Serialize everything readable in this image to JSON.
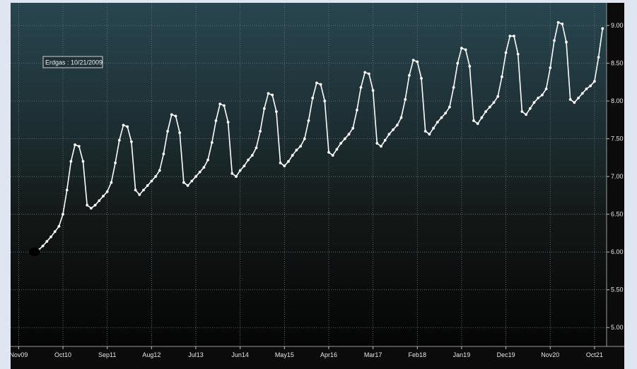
{
  "chart_data": {
    "type": "line",
    "legend": "Erdgas : 10/21/2009",
    "grid": true,
    "ylim": [
      4.75,
      9.3
    ],
    "xlim": [
      "2009-09",
      "2022-01"
    ],
    "x_tick_labels": [
      "Nov09",
      "Oct10",
      "Sep11",
      "Aug12",
      "Jul13",
      "Jun14",
      "May15",
      "Apr16",
      "Mar17",
      "Feb18",
      "Jan19",
      "Dec19",
      "Nov20",
      "Oct21"
    ],
    "x_tick_dates": [
      "2009-11",
      "2010-10",
      "2011-09",
      "2012-08",
      "2013-07",
      "2014-06",
      "2015-05",
      "2016-04",
      "2017-03",
      "2018-02",
      "2019-01",
      "2019-12",
      "2020-11",
      "2021-10"
    ],
    "y_tick_labels": [
      "5.00",
      "5.50",
      "6.00",
      "6.50",
      "7.00",
      "7.50",
      "8.00",
      "8.50",
      "9.00"
    ],
    "y_ticks": [
      5.0,
      5.5,
      6.0,
      6.5,
      7.0,
      7.5,
      8.0,
      8.5,
      9.0
    ],
    "series": [
      {
        "name": "Erdgas",
        "color": "#ffffff",
        "x": [
          "2010-04",
          "2010-05",
          "2010-06",
          "2010-07",
          "2010-08",
          "2010-09",
          "2010-10",
          "2010-11",
          "2010-12",
          "2011-01",
          "2011-02",
          "2011-03",
          "2011-04",
          "2011-05",
          "2011-06",
          "2011-07",
          "2011-08",
          "2011-09",
          "2011-10",
          "2011-11",
          "2011-12",
          "2012-01",
          "2012-02",
          "2012-03",
          "2012-04",
          "2012-05",
          "2012-06",
          "2012-07",
          "2012-08",
          "2012-09",
          "2012-10",
          "2012-11",
          "2012-12",
          "2013-01",
          "2013-02",
          "2013-03",
          "2013-04",
          "2013-05",
          "2013-06",
          "2013-07",
          "2013-08",
          "2013-09",
          "2013-10",
          "2013-11",
          "2013-12",
          "2014-01",
          "2014-02",
          "2014-03",
          "2014-04",
          "2014-05",
          "2014-06",
          "2014-07",
          "2014-08",
          "2014-09",
          "2014-10",
          "2014-11",
          "2014-12",
          "2015-01",
          "2015-02",
          "2015-03",
          "2015-04",
          "2015-05",
          "2015-06",
          "2015-07",
          "2015-08",
          "2015-09",
          "2015-10",
          "2015-11",
          "2015-12",
          "2016-01",
          "2016-02",
          "2016-03",
          "2016-04",
          "2016-05",
          "2016-06",
          "2016-07",
          "2016-08",
          "2016-09",
          "2016-10",
          "2016-11",
          "2016-12",
          "2017-01",
          "2017-02",
          "2017-03",
          "2017-04",
          "2017-05",
          "2017-06",
          "2017-07",
          "2017-08",
          "2017-09",
          "2017-10",
          "2017-11",
          "2017-12",
          "2018-01",
          "2018-02",
          "2018-03",
          "2018-04",
          "2018-05",
          "2018-06",
          "2018-07",
          "2018-08",
          "2018-09",
          "2018-10",
          "2018-11",
          "2018-12",
          "2019-01",
          "2019-02",
          "2019-03",
          "2019-04",
          "2019-05",
          "2019-06",
          "2019-07",
          "2019-08",
          "2019-09",
          "2019-10",
          "2019-11",
          "2019-12",
          "2020-01",
          "2020-02",
          "2020-03",
          "2020-04",
          "2020-05",
          "2020-06",
          "2020-07",
          "2020-08",
          "2020-09",
          "2020-10",
          "2020-11",
          "2020-12",
          "2021-01",
          "2021-02",
          "2021-03",
          "2021-04",
          "2021-05",
          "2021-06",
          "2021-07",
          "2021-08",
          "2021-09",
          "2021-10",
          "2021-11",
          "2021-12"
        ],
        "values": [
          6.03,
          6.08,
          6.14,
          6.2,
          6.27,
          6.34,
          6.5,
          6.82,
          7.2,
          7.42,
          7.4,
          7.2,
          6.62,
          6.58,
          6.62,
          6.68,
          6.74,
          6.8,
          6.92,
          7.18,
          7.48,
          7.68,
          7.66,
          7.46,
          6.82,
          6.76,
          6.82,
          6.88,
          6.94,
          7.0,
          7.08,
          7.3,
          7.6,
          7.82,
          7.8,
          7.58,
          6.92,
          6.88,
          6.94,
          7.0,
          7.06,
          7.12,
          7.22,
          7.45,
          7.74,
          7.96,
          7.94,
          7.72,
          7.04,
          7.0,
          7.08,
          7.14,
          7.22,
          7.28,
          7.38,
          7.6,
          7.9,
          8.1,
          8.08,
          7.86,
          7.18,
          7.14,
          7.2,
          7.28,
          7.35,
          7.4,
          7.5,
          7.74,
          8.04,
          8.24,
          8.22,
          8.0,
          7.32,
          7.28,
          7.36,
          7.44,
          7.5,
          7.56,
          7.64,
          7.88,
          8.18,
          8.38,
          8.36,
          8.14,
          7.44,
          7.4,
          7.48,
          7.56,
          7.62,
          7.68,
          7.78,
          8.02,
          8.34,
          8.54,
          8.52,
          8.3,
          7.6,
          7.56,
          7.64,
          7.72,
          7.78,
          7.84,
          7.92,
          8.18,
          8.5,
          8.7,
          8.68,
          8.46,
          7.74,
          7.7,
          7.78,
          7.86,
          7.92,
          7.98,
          8.06,
          8.32,
          8.64,
          8.86,
          8.86,
          8.62,
          7.86,
          7.82,
          7.9,
          7.98,
          8.04,
          8.08,
          8.16,
          8.44,
          8.8,
          9.04,
          9.02,
          8.78,
          8.02,
          7.98,
          8.04,
          8.1,
          8.16,
          8.2,
          8.26,
          8.58,
          8.96
        ]
      }
    ]
  }
}
